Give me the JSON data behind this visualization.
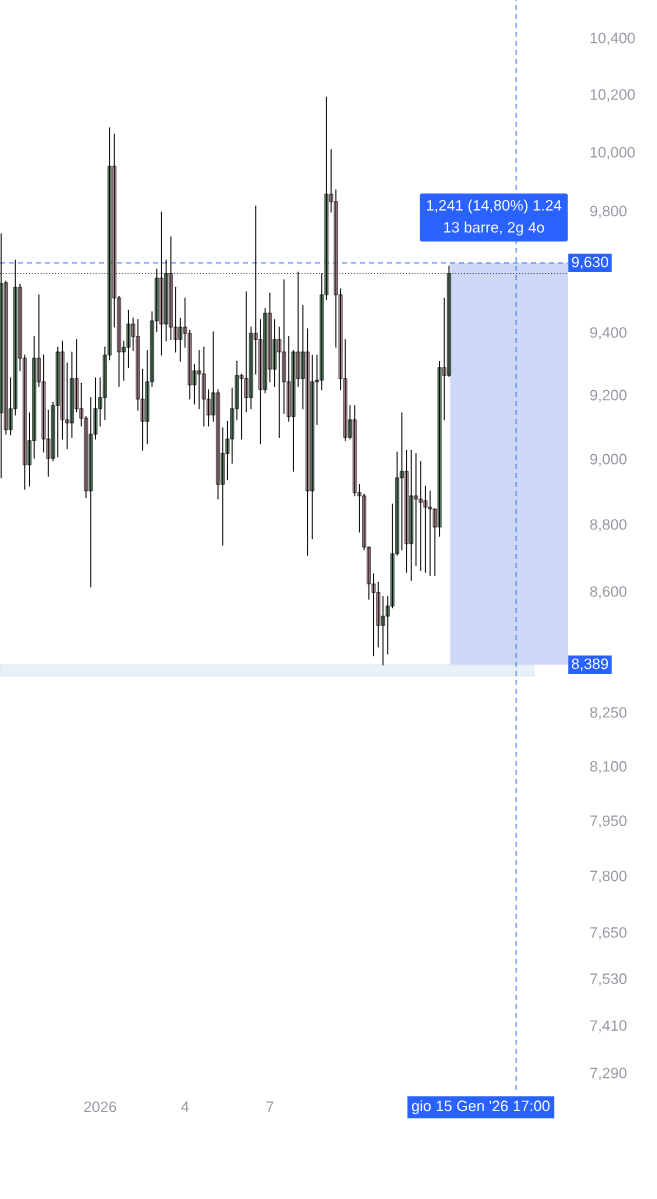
{
  "chart_data": {
    "type": "candlestick",
    "x": [
      "2025-12-28T12:00",
      "2025-12-28T16:00",
      "2025-12-28T20:00",
      "2025-12-29T00:00",
      "2025-12-29T04:00",
      "2025-12-29T08:00",
      "2025-12-29T12:00",
      "2025-12-29T16:00",
      "2025-12-29T20:00",
      "2025-12-30T00:00",
      "2025-12-30T04:00",
      "2025-12-30T08:00",
      "2025-12-30T12:00",
      "2025-12-30T16:00",
      "2025-12-30T20:00",
      "2025-12-31T00:00",
      "2025-12-31T04:00",
      "2025-12-31T08:00",
      "2025-12-31T12:00",
      "2025-12-31T16:00",
      "2025-12-31T20:00",
      "2026-01-01T00:00",
      "2026-01-01T04:00",
      "2026-01-01T08:00",
      "2026-01-01T12:00",
      "2026-01-01T16:00",
      "2026-01-01T20:00",
      "2026-01-02T00:00",
      "2026-01-02T04:00",
      "2026-01-02T08:00",
      "2026-01-02T12:00",
      "2026-01-02T16:00",
      "2026-01-02T20:00",
      "2026-01-03T00:00",
      "2026-01-03T04:00",
      "2026-01-03T08:00",
      "2026-01-03T12:00",
      "2026-01-03T16:00",
      "2026-01-03T20:00",
      "2026-01-04T00:00",
      "2026-01-04T04:00",
      "2026-01-04T08:00",
      "2026-01-04T12:00",
      "2026-01-04T16:00",
      "2026-01-04T20:00",
      "2026-01-05T00:00",
      "2026-01-05T04:00",
      "2026-01-05T08:00",
      "2026-01-05T12:00",
      "2026-01-05T16:00",
      "2026-01-05T20:00",
      "2026-01-06T00:00",
      "2026-01-06T04:00",
      "2026-01-06T08:00",
      "2026-01-06T12:00",
      "2026-01-06T16:00",
      "2026-01-06T20:00",
      "2026-01-07T00:00",
      "2026-01-07T04:00",
      "2026-01-07T08:00",
      "2026-01-07T12:00",
      "2026-01-07T16:00",
      "2026-01-07T20:00",
      "2026-01-08T00:00",
      "2026-01-08T04:00",
      "2026-01-08T08:00",
      "2026-01-08T12:00",
      "2026-01-08T16:00",
      "2026-01-08T20:00",
      "2026-01-09T00:00",
      "2026-01-09T04:00",
      "2026-01-09T08:00",
      "2026-01-09T12:00",
      "2026-01-09T16:00",
      "2026-01-09T20:00",
      "2026-01-10T00:00",
      "2026-01-10T04:00",
      "2026-01-10T08:00",
      "2026-01-10T12:00",
      "2026-01-10T16:00",
      "2026-01-10T20:00",
      "2026-01-11T00:00",
      "2026-01-11T04:00",
      "2026-01-11T08:00",
      "2026-01-11T12:00",
      "2026-01-11T16:00",
      "2026-01-11T20:00",
      "2026-01-12T00:00",
      "2026-01-12T04:00",
      "2026-01-12T08:00",
      "2026-01-12T12:00",
      "2026-01-12T16:00",
      "2026-01-12T20:00",
      "2026-01-13T00:00",
      "2026-01-13T04:00",
      "2026-01-13T08:00"
    ],
    "ohlc": [
      [
        9147,
        9727,
        8945,
        9562
      ],
      [
        9565,
        9570,
        9080,
        9094
      ],
      [
        9094,
        9258,
        9078,
        9160
      ],
      [
        9160,
        9640,
        9140,
        9550
      ],
      [
        9550,
        9560,
        9280,
        9320
      ],
      [
        9320,
        9330,
        8910,
        8985
      ],
      [
        8985,
        9147,
        8920,
        9060
      ],
      [
        9060,
        9390,
        9005,
        9320
      ],
      [
        9320,
        9525,
        9230,
        9245
      ],
      [
        9245,
        9330,
        9025,
        9065
      ],
      [
        9065,
        9155,
        8950,
        9005
      ],
      [
        9005,
        9180,
        8998,
        9170
      ],
      [
        9170,
        9355,
        9010,
        9340
      ],
      [
        9340,
        9375,
        9065,
        9125
      ],
      [
        9125,
        9305,
        9035,
        9115
      ],
      [
        9115,
        9340,
        9070,
        9255
      ],
      [
        9255,
        9380,
        9150,
        9160
      ],
      [
        9160,
        9240,
        9106,
        9130
      ],
      [
        9130,
        9135,
        8885,
        8905
      ],
      [
        8905,
        9195,
        8617,
        9080
      ],
      [
        9080,
        9258,
        9065,
        9160
      ],
      [
        9160,
        9258,
        9106,
        9195
      ],
      [
        9195,
        9355,
        9125,
        9330
      ],
      [
        9330,
        10087,
        9315,
        9955
      ],
      [
        9955,
        10066,
        9420,
        9515
      ],
      [
        9515,
        9520,
        9230,
        9340
      ],
      [
        9340,
        9375,
        9250,
        9355
      ],
      [
        9355,
        9475,
        9290,
        9430
      ],
      [
        9430,
        9450,
        9345,
        9390
      ],
      [
        9390,
        9445,
        9155,
        9190
      ],
      [
        9190,
        9285,
        9030,
        9120
      ],
      [
        9120,
        9345,
        9050,
        9245
      ],
      [
        9245,
        9470,
        9230,
        9440
      ],
      [
        9440,
        9610,
        9405,
        9580
      ],
      [
        9580,
        9800,
        9330,
        9430
      ],
      [
        9430,
        9640,
        9375,
        9595
      ],
      [
        9595,
        9717,
        9380,
        9420
      ],
      [
        9420,
        9550,
        9340,
        9380
      ],
      [
        9380,
        9450,
        9310,
        9420
      ],
      [
        9420,
        9515,
        9355,
        9400
      ],
      [
        9400,
        9410,
        9190,
        9235
      ],
      [
        9235,
        9300,
        9175,
        9280
      ],
      [
        9280,
        9345,
        9160,
        9270
      ],
      [
        9270,
        9355,
        9106,
        9190
      ],
      [
        9190,
        9220,
        9106,
        9140
      ],
      [
        9140,
        9405,
        9120,
        9210
      ],
      [
        9210,
        9220,
        8880,
        8925
      ],
      [
        8925,
        9100,
        8740,
        9020
      ],
      [
        9020,
        9120,
        8940,
        9065
      ],
      [
        9065,
        9225,
        8990,
        9160
      ],
      [
        9160,
        9310,
        9125,
        9265
      ],
      [
        9265,
        9270,
        9065,
        9255
      ],
      [
        9255,
        9535,
        9150,
        9195
      ],
      [
        9195,
        9420,
        9160,
        9400
      ],
      [
        9400,
        9820,
        9270,
        9380
      ],
      [
        9380,
        9445,
        9050,
        9220
      ],
      [
        9220,
        9480,
        9210,
        9465
      ],
      [
        9465,
        9530,
        9245,
        9285
      ],
      [
        9285,
        9445,
        9230,
        9380
      ],
      [
        9380,
        9420,
        9070,
        9340
      ],
      [
        9340,
        9575,
        9145,
        9245
      ],
      [
        9245,
        9390,
        9120,
        9135
      ],
      [
        9135,
        9345,
        8965,
        9340
      ],
      [
        9340,
        9600,
        9230,
        9255
      ],
      [
        9255,
        9490,
        9160,
        9340
      ],
      [
        9340,
        9415,
        8710,
        8905
      ],
      [
        8905,
        9330,
        8760,
        9245
      ],
      [
        9245,
        9330,
        9110,
        9250
      ],
      [
        9250,
        9595,
        9220,
        9525
      ],
      [
        9525,
        10195,
        9510,
        9860
      ],
      [
        9860,
        10012,
        9800,
        9835
      ],
      [
        9835,
        9875,
        9355,
        9525
      ],
      [
        9525,
        9545,
        9220,
        9255
      ],
      [
        9255,
        9380,
        9060,
        9070
      ],
      [
        9070,
        9170,
        9065,
        9125
      ],
      [
        9125,
        9170,
        8890,
        8900
      ],
      [
        8900,
        8925,
        8780,
        8890
      ],
      [
        8890,
        8895,
        8727,
        8735
      ],
      [
        8735,
        8735,
        8580,
        8625
      ],
      [
        8625,
        8655,
        8415,
        8600
      ],
      [
        8600,
        8630,
        8440,
        8503
      ],
      [
        8503,
        8588,
        8389,
        8530
      ],
      [
        8530,
        8588,
        8420,
        8560
      ],
      [
        8560,
        8865,
        8555,
        8715
      ],
      [
        8715,
        9025,
        8710,
        8945
      ],
      [
        8945,
        9147,
        8727,
        8965
      ],
      [
        8965,
        9030,
        8660,
        8745
      ],
      [
        8745,
        9030,
        8635,
        8890
      ],
      [
        8890,
        9020,
        8680,
        8880
      ],
      [
        8880,
        8995,
        8665,
        8870
      ],
      [
        8875,
        8920,
        8660,
        8855
      ],
      [
        8855,
        8905,
        8650,
        8850
      ],
      [
        8850,
        8850,
        8650,
        8795
      ],
      [
        8795,
        9310,
        8767,
        9290
      ],
      [
        9290,
        9515,
        9125,
        9265
      ],
      [
        9265,
        9620,
        9262,
        9595
      ]
    ],
    "xlim": [
      "2025-12-28T11:00",
      "2026-01-17T13:00"
    ],
    "xticks": [
      {
        "value": "2026-01-01",
        "label": "2026"
      },
      {
        "value": "2026-01-04",
        "label": "4"
      },
      {
        "value": "2026-01-07",
        "label": "7"
      }
    ],
    "ylim": [
      7250,
      10540
    ],
    "log": true,
    "yticks": [
      {
        "value": 10400,
        "label": "10,400"
      },
      {
        "value": 10200,
        "label": "10,200"
      },
      {
        "value": 10000,
        "label": "10,000"
      },
      {
        "value": 9800,
        "label": "9,800"
      },
      {
        "value": 9400,
        "label": "9,400"
      },
      {
        "value": 9200,
        "label": "9,200"
      },
      {
        "value": 9000,
        "label": "9,000"
      },
      {
        "value": 8800,
        "label": "8,800"
      },
      {
        "value": 8600,
        "label": "8,600"
      },
      {
        "value": 8250,
        "label": "8,250"
      },
      {
        "value": 8100,
        "label": "8,100"
      },
      {
        "value": 7950,
        "label": "7,950"
      },
      {
        "value": 7800,
        "label": "7,800"
      },
      {
        "value": 7650,
        "label": "7,650"
      },
      {
        "value": 7530,
        "label": "7,530"
      },
      {
        "value": 7410,
        "label": "7,410"
      },
      {
        "value": 7290,
        "label": "7,290"
      }
    ],
    "ref_lines": [
      {
        "axis": "y",
        "value": 9630,
        "label": "9,630",
        "color": "#2962ff",
        "line_style": "dashed"
      },
      {
        "axis": "y",
        "value": 9595,
        "color": "#131722",
        "line_style": "dotted"
      },
      {
        "axis": "x",
        "value": "2026-01-15T17:00",
        "label": "gio 15 Gen '26   17:00",
        "color": "#2962ff",
        "line_style": "dashed"
      }
    ],
    "bands": [
      {
        "axis": "y",
        "from": 8357,
        "to": 8389,
        "color": "#e8f1f8"
      },
      {
        "axis": "y",
        "from": 8389,
        "to": 9630,
        "label": "8,389",
        "color": "#cdd8f7"
      }
    ],
    "annotations": [
      "1,241 (14,80%) 1.24",
      "13 barre, 2g 4o"
    ]
  }
}
